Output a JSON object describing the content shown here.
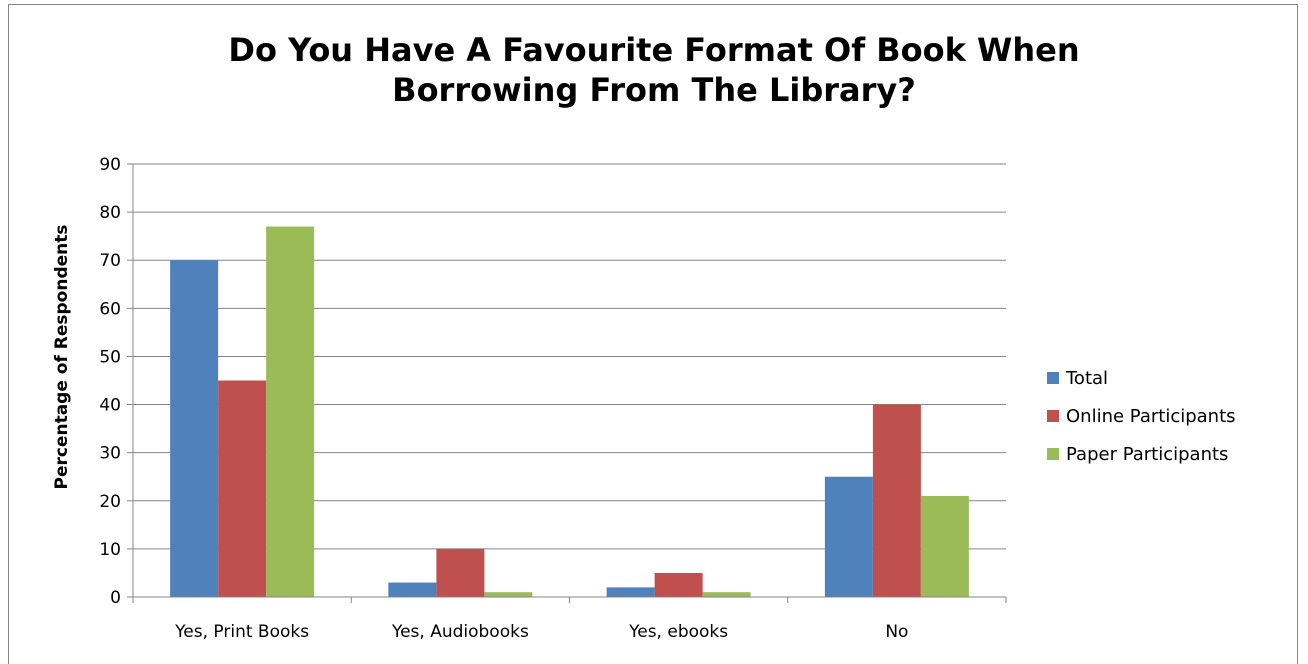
{
  "chart_data": {
    "type": "bar",
    "title_lines": [
      "Do You Have A Favourite Format Of Book When",
      "Borrowing From The Library?"
    ],
    "xlabel": "",
    "ylabel": "Percentage of Respondents",
    "ylim": [
      0,
      90
    ],
    "yticks": [
      "0",
      "10",
      "20",
      "30",
      "40",
      "50",
      "60",
      "70",
      "80",
      "90"
    ],
    "grid": true,
    "legend_position": "right",
    "categories": [
      "Yes, Print Books",
      "Yes, Audiobooks",
      "Yes, ebooks",
      "No"
    ],
    "series": [
      {
        "name": "Total",
        "color": "#4f81bd",
        "values": [
          70,
          3,
          2,
          25
        ]
      },
      {
        "name": "Online Participants",
        "color": "#c0504d",
        "values": [
          45,
          10,
          5,
          40
        ]
      },
      {
        "name": "Paper Participants",
        "color": "#9bbb59",
        "values": [
          77,
          1,
          1,
          21
        ]
      }
    ]
  }
}
